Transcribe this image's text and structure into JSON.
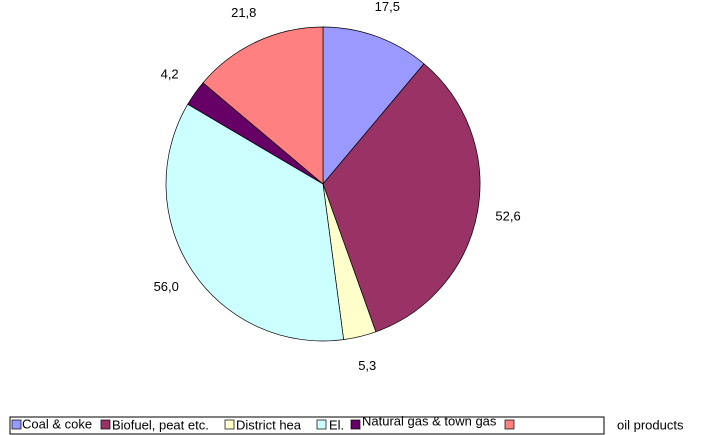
{
  "chart_data": {
    "type": "pie",
    "categories": [
      "Coal & coke",
      "Biofuel, peat etc.",
      "District hea",
      "El.",
      "Natural gas & town gas",
      "oil products"
    ],
    "values": [
      17.5,
      52.6,
      5.3,
      56.0,
      4.2,
      21.8
    ],
    "value_labels": [
      "17,5",
      "52,6",
      "5,3",
      "56,0",
      "4,2",
      "21,8"
    ],
    "colors": [
      "#9999ff",
      "#993366",
      "#ffffcc",
      "#ccffff",
      "#660066",
      "#ff8080"
    ],
    "legend": "bottom"
  }
}
